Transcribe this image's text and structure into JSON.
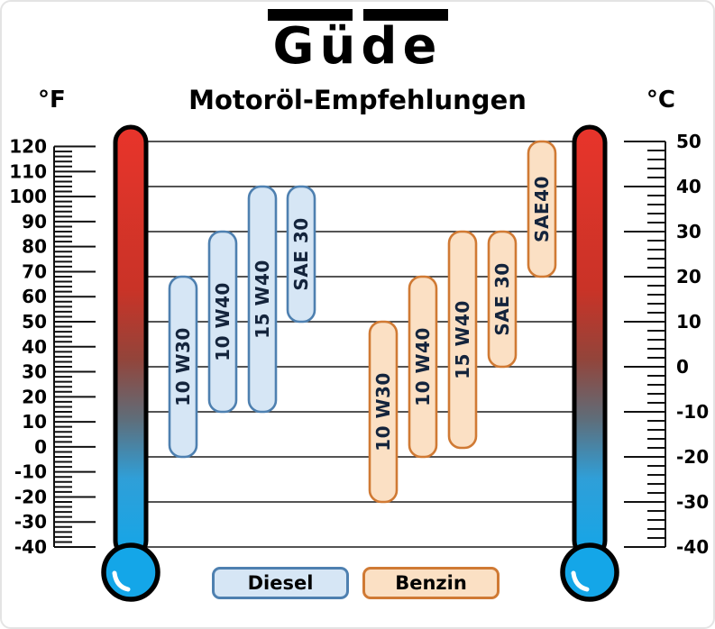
{
  "logo": {
    "text": "Güde"
  },
  "header": {
    "title": "Motoröl-Empfehlungen",
    "left_unit": "°F",
    "right_unit": "°C"
  },
  "chart_data": {
    "type": "bar",
    "subtype": "temperature-range-columns",
    "title": "Motoröl-Empfehlungen",
    "axes": {
      "fahrenheit": {
        "unit": "°F",
        "side": "left",
        "min": -40,
        "max": 120,
        "label_step": 10,
        "minor_step": 2,
        "labels": [
          120,
          110,
          100,
          90,
          80,
          70,
          60,
          50,
          40,
          30,
          20,
          10,
          0,
          -10,
          -20,
          -30,
          -40
        ]
      },
      "celsius": {
        "unit": "°C",
        "side": "right",
        "min": -40,
        "max": 50,
        "label_step": 10,
        "minor_step": 2,
        "labels": [
          50,
          40,
          30,
          20,
          10,
          0,
          -10,
          -20,
          -30,
          -40
        ]
      }
    },
    "grid": {
      "every_c": 10,
      "from_c": -40,
      "to_c": 50
    },
    "series": [
      {
        "name": "Diesel",
        "fill": "#d6e6f5",
        "stroke": "#4e80b0",
        "bars": [
          {
            "label": "10 W30",
            "from_c": -20,
            "to_c": 20
          },
          {
            "label": "10 W40",
            "from_c": -10,
            "to_c": 30
          },
          {
            "label": "15 W40",
            "from_c": -10,
            "to_c": 40
          },
          {
            "label": "SAE 30",
            "from_c": 10,
            "to_c": 40
          }
        ]
      },
      {
        "name": "Benzin",
        "fill": "#fbe0c4",
        "stroke": "#d07a34",
        "bars": [
          {
            "label": "10 W30",
            "from_c": -30,
            "to_c": 10
          },
          {
            "label": "10 W40",
            "from_c": -20,
            "to_c": 20
          },
          {
            "label": "15 W40",
            "from_c": -18,
            "to_c": 30
          },
          {
            "label": "SAE 30",
            "from_c": 0,
            "to_c": 30
          },
          {
            "label": "SAE40",
            "from_c": 20,
            "to_c": 50
          }
        ]
      }
    ],
    "thermometer_colors": {
      "top": "#e8342b",
      "mid": "#5f6d79",
      "bottom": "#2f9fd8",
      "bulb": "#14a6e8"
    },
    "legend": [
      {
        "label": "Diesel"
      },
      {
        "label": "Benzin"
      }
    ]
  }
}
